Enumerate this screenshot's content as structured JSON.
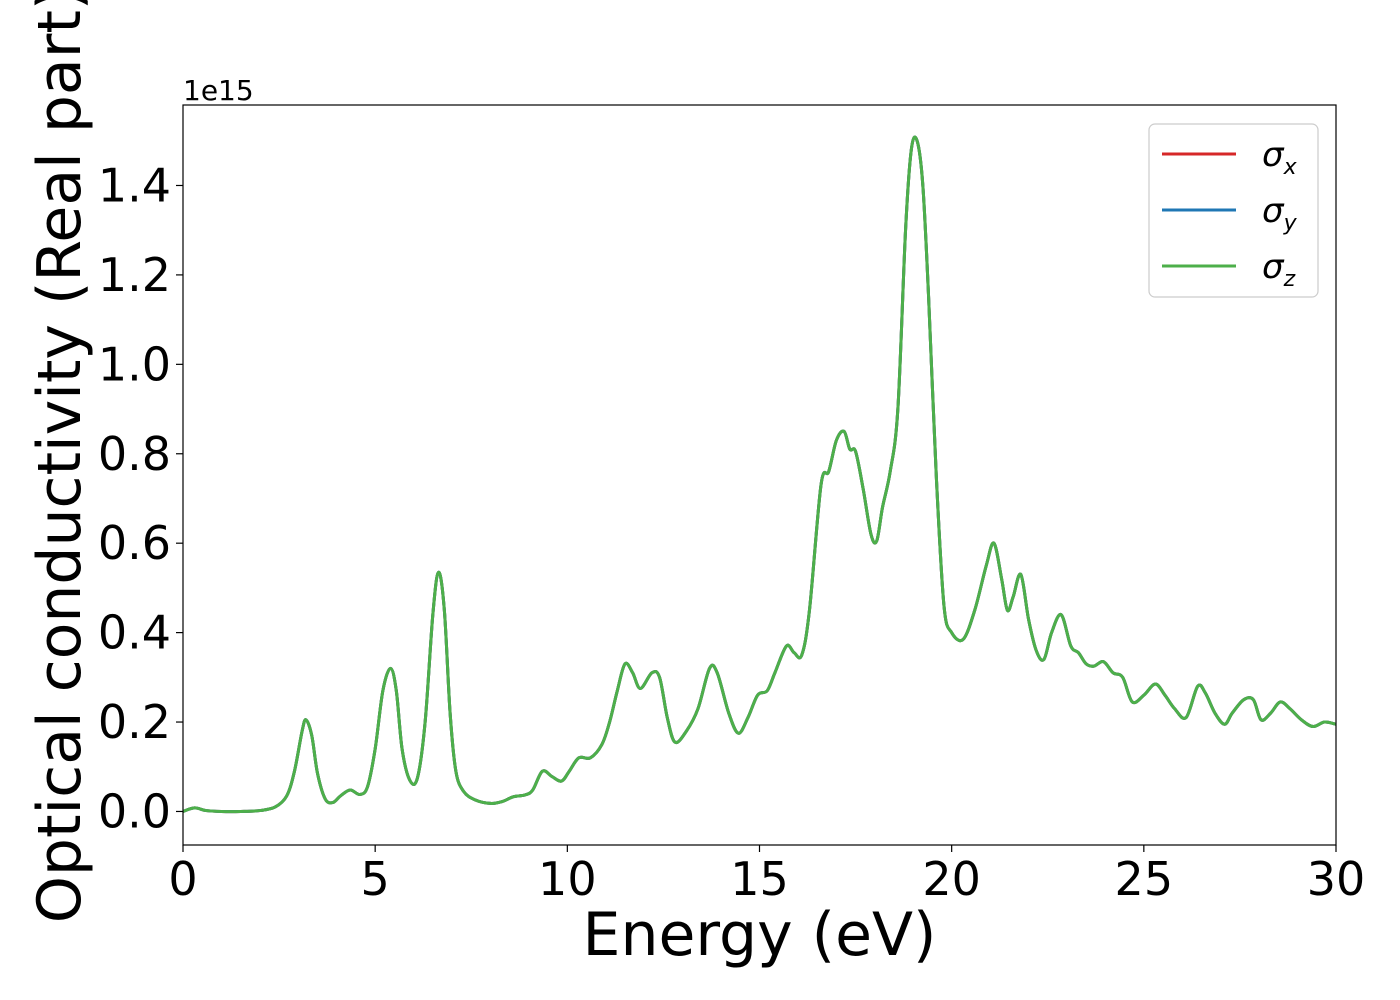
{
  "chart_data": {
    "type": "line",
    "xlabel": "Energy (eV)",
    "ylabel": "Optical conductivity (Real part)",
    "y_offset_label": "1e15",
    "xlim": [
      0,
      30
    ],
    "ylim": [
      -0.075,
      1.58
    ],
    "xticks": [
      0,
      5,
      10,
      15,
      20,
      25,
      30
    ],
    "xtick_labels": [
      "0",
      "5",
      "10",
      "15",
      "20",
      "25",
      "30"
    ],
    "yticks": [
      0.0,
      0.2,
      0.4,
      0.6,
      0.8,
      1.0,
      1.2,
      1.4
    ],
    "ytick_labels": [
      "0.0",
      "0.2",
      "0.4",
      "0.6",
      "0.8",
      "1.0",
      "1.2",
      "1.4"
    ],
    "grid": false,
    "legend_position": "top-right",
    "x": [
      0,
      0.3,
      0.6,
      1.0,
      1.5,
      2.0,
      2.4,
      2.7,
      2.9,
      3.1,
      3.2,
      3.35,
      3.5,
      3.7,
      3.9,
      4.1,
      4.35,
      4.6,
      4.8,
      5.0,
      5.2,
      5.4,
      5.55,
      5.7,
      5.9,
      6.1,
      6.3,
      6.5,
      6.65,
      6.8,
      6.95,
      7.1,
      7.3,
      7.6,
      8.0,
      8.3,
      8.6,
      8.9,
      9.1,
      9.35,
      9.6,
      9.85,
      10.05,
      10.3,
      10.6,
      10.9,
      11.1,
      11.3,
      11.5,
      11.7,
      11.9,
      12.2,
      12.4,
      12.6,
      12.8,
      13.1,
      13.4,
      13.7,
      13.9,
      14.2,
      14.45,
      14.7,
      14.95,
      15.2,
      15.4,
      15.7,
      15.9,
      16.1,
      16.3,
      16.6,
      16.8,
      17.0,
      17.2,
      17.35,
      17.5,
      17.7,
      17.9,
      18.05,
      18.2,
      18.4,
      18.6,
      18.8,
      18.95,
      19.1,
      19.25,
      19.4,
      19.6,
      19.8,
      20.0,
      20.3,
      20.6,
      20.9,
      21.1,
      21.3,
      21.45,
      21.6,
      21.8,
      22.0,
      22.2,
      22.4,
      22.6,
      22.85,
      23.1,
      23.3,
      23.5,
      23.7,
      23.95,
      24.2,
      24.45,
      24.7,
      25.0,
      25.3,
      25.55,
      25.8,
      26.1,
      26.4,
      26.6,
      26.85,
      27.1,
      27.3,
      27.6,
      27.85,
      28.05,
      28.3,
      28.55,
      28.8,
      29.1,
      29.4,
      29.7,
      30.0
    ],
    "series": [
      {
        "name": "σx",
        "color": "#d62728",
        "y": [
          0.0,
          0.008,
          0.002,
          0.0,
          0.0,
          0.002,
          0.01,
          0.035,
          0.09,
          0.18,
          0.205,
          0.17,
          0.085,
          0.028,
          0.02,
          0.035,
          0.048,
          0.038,
          0.055,
          0.14,
          0.27,
          0.32,
          0.27,
          0.14,
          0.07,
          0.075,
          0.2,
          0.44,
          0.535,
          0.45,
          0.22,
          0.09,
          0.045,
          0.026,
          0.018,
          0.022,
          0.033,
          0.037,
          0.048,
          0.09,
          0.078,
          0.068,
          0.09,
          0.12,
          0.12,
          0.15,
          0.2,
          0.27,
          0.33,
          0.31,
          0.275,
          0.31,
          0.3,
          0.21,
          0.155,
          0.18,
          0.23,
          0.32,
          0.31,
          0.22,
          0.175,
          0.21,
          0.26,
          0.27,
          0.31,
          0.37,
          0.355,
          0.35,
          0.45,
          0.73,
          0.76,
          0.83,
          0.85,
          0.81,
          0.805,
          0.72,
          0.62,
          0.605,
          0.68,
          0.76,
          0.9,
          1.3,
          1.48,
          1.5,
          1.4,
          1.15,
          0.75,
          0.46,
          0.4,
          0.385,
          0.45,
          0.55,
          0.6,
          0.52,
          0.45,
          0.48,
          0.53,
          0.43,
          0.36,
          0.34,
          0.4,
          0.44,
          0.37,
          0.355,
          0.33,
          0.325,
          0.335,
          0.31,
          0.3,
          0.245,
          0.26,
          0.285,
          0.26,
          0.23,
          0.21,
          0.28,
          0.265,
          0.22,
          0.195,
          0.22,
          0.25,
          0.25,
          0.205,
          0.22,
          0.245,
          0.23,
          0.205,
          0.19,
          0.2,
          0.195
        ]
      },
      {
        "name": "σy",
        "color": "#1f77b4",
        "y": [
          0.0,
          0.008,
          0.002,
          0.0,
          0.0,
          0.002,
          0.01,
          0.035,
          0.09,
          0.18,
          0.205,
          0.17,
          0.085,
          0.028,
          0.02,
          0.035,
          0.048,
          0.038,
          0.055,
          0.14,
          0.27,
          0.32,
          0.27,
          0.14,
          0.07,
          0.075,
          0.2,
          0.44,
          0.535,
          0.45,
          0.22,
          0.09,
          0.045,
          0.026,
          0.018,
          0.022,
          0.033,
          0.037,
          0.048,
          0.09,
          0.078,
          0.068,
          0.09,
          0.12,
          0.12,
          0.15,
          0.2,
          0.27,
          0.33,
          0.31,
          0.275,
          0.31,
          0.3,
          0.21,
          0.155,
          0.18,
          0.23,
          0.32,
          0.31,
          0.22,
          0.175,
          0.21,
          0.26,
          0.27,
          0.31,
          0.37,
          0.355,
          0.35,
          0.45,
          0.73,
          0.76,
          0.83,
          0.85,
          0.81,
          0.805,
          0.72,
          0.62,
          0.605,
          0.68,
          0.76,
          0.9,
          1.3,
          1.48,
          1.5,
          1.4,
          1.15,
          0.75,
          0.46,
          0.4,
          0.385,
          0.45,
          0.55,
          0.6,
          0.52,
          0.45,
          0.48,
          0.53,
          0.43,
          0.36,
          0.34,
          0.4,
          0.44,
          0.37,
          0.355,
          0.33,
          0.325,
          0.335,
          0.31,
          0.3,
          0.245,
          0.26,
          0.285,
          0.26,
          0.23,
          0.21,
          0.28,
          0.265,
          0.22,
          0.195,
          0.22,
          0.25,
          0.25,
          0.205,
          0.22,
          0.245,
          0.23,
          0.205,
          0.19,
          0.2,
          0.195
        ]
      },
      {
        "name": "σz",
        "color": "#4daf4a",
        "y": [
          0.0,
          0.008,
          0.002,
          0.0,
          0.0,
          0.002,
          0.01,
          0.035,
          0.09,
          0.18,
          0.205,
          0.17,
          0.085,
          0.028,
          0.02,
          0.035,
          0.048,
          0.038,
          0.055,
          0.14,
          0.27,
          0.32,
          0.27,
          0.14,
          0.07,
          0.075,
          0.2,
          0.44,
          0.535,
          0.45,
          0.22,
          0.09,
          0.045,
          0.026,
          0.018,
          0.022,
          0.033,
          0.037,
          0.048,
          0.09,
          0.078,
          0.068,
          0.09,
          0.12,
          0.12,
          0.15,
          0.2,
          0.27,
          0.33,
          0.31,
          0.275,
          0.31,
          0.3,
          0.21,
          0.155,
          0.18,
          0.23,
          0.32,
          0.31,
          0.22,
          0.175,
          0.21,
          0.26,
          0.27,
          0.31,
          0.37,
          0.355,
          0.35,
          0.45,
          0.73,
          0.76,
          0.83,
          0.85,
          0.81,
          0.805,
          0.72,
          0.62,
          0.605,
          0.68,
          0.76,
          0.9,
          1.3,
          1.48,
          1.5,
          1.4,
          1.15,
          0.75,
          0.46,
          0.4,
          0.385,
          0.45,
          0.55,
          0.6,
          0.52,
          0.45,
          0.48,
          0.53,
          0.43,
          0.36,
          0.34,
          0.4,
          0.44,
          0.37,
          0.355,
          0.33,
          0.325,
          0.335,
          0.31,
          0.3,
          0.245,
          0.26,
          0.285,
          0.26,
          0.23,
          0.21,
          0.28,
          0.265,
          0.22,
          0.195,
          0.22,
          0.25,
          0.25,
          0.205,
          0.22,
          0.245,
          0.23,
          0.205,
          0.19,
          0.2,
          0.195
        ]
      }
    ],
    "legend": [
      {
        "symbol": "σ",
        "subscript": "x",
        "color": "#d62728"
      },
      {
        "symbol": "σ",
        "subscript": "y",
        "color": "#1f77b4"
      },
      {
        "symbol": "σ",
        "subscript": "z",
        "color": "#4daf4a"
      }
    ]
  }
}
